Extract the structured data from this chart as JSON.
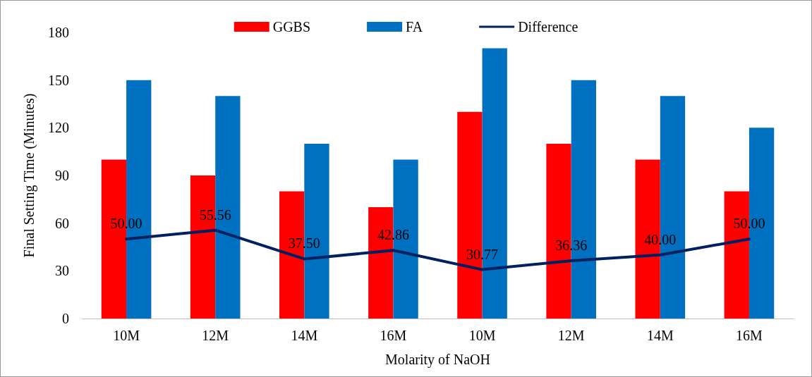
{
  "chart_data": {
    "type": "bar",
    "xlabel": "Molarity of NaOH",
    "ylabel": "Final Setting Time (Minutes)",
    "categories": [
      "10M",
      "12M",
      "14M",
      "16M",
      "10M",
      "12M",
      "14M",
      "16M"
    ],
    "series": [
      {
        "name": "GGBS",
        "color": "#ff0000",
        "values": [
          100,
          90,
          80,
          70,
          130,
          110,
          100,
          80
        ]
      },
      {
        "name": "FA",
        "color": "#0070c0",
        "values": [
          150,
          140,
          110,
          100,
          170,
          150,
          140,
          120
        ]
      },
      {
        "name": "Difference",
        "type": "line",
        "color": "#002060",
        "marker": "none",
        "values": [
          50.0,
          55.56,
          37.5,
          42.86,
          30.77,
          36.36,
          40.0,
          50.0
        ],
        "value_labels": [
          "50.00",
          "55.56",
          "37.50",
          "42.86",
          "30.77",
          "36.36",
          "40.00",
          "50.00"
        ]
      }
    ],
    "ylim": [
      0,
      180
    ],
    "yticks": [
      0,
      30,
      60,
      90,
      120,
      150,
      180
    ],
    "grid": false,
    "legend": "top"
  }
}
